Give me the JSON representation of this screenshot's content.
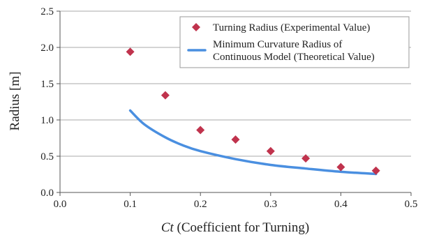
{
  "chart_data": {
    "type": "scatter",
    "title": "",
    "xlabel_italic": "Ct",
    "xlabel_rest": " (Coefficient for Turning)",
    "ylabel": "Radius [m]",
    "xlim": [
      0,
      0.5
    ],
    "ylim": [
      0,
      2.5
    ],
    "x_ticks": [
      0.0,
      0.1,
      0.2,
      0.3,
      0.4,
      0.5
    ],
    "x_tick_labels": [
      "0.0",
      "0.1",
      "0.2",
      "0.3",
      "0.4",
      "0.5"
    ],
    "y_ticks": [
      0.0,
      0.5,
      1.0,
      1.5,
      2.0,
      2.5
    ],
    "y_tick_labels": [
      "0.0",
      "0.5",
      "1.0",
      "1.5",
      "2.0",
      "2.5"
    ],
    "grid": "horizontal",
    "legend_position": "top-right",
    "series": [
      {
        "name": "Turning Radius (Experimental Value)",
        "kind": "scatter",
        "marker": "diamond",
        "color": "#c0334d",
        "x": [
          0.1,
          0.15,
          0.2,
          0.25,
          0.3,
          0.35,
          0.4,
          0.45
        ],
        "y": [
          1.94,
          1.34,
          0.86,
          0.73,
          0.57,
          0.47,
          0.35,
          0.3
        ]
      },
      {
        "name_lines": [
          "Minimum Curvature Radius of",
          "Continuous Model (Theoretical Value)"
        ],
        "kind": "line",
        "color": "#4a8fe0",
        "x": [
          0.1,
          0.12,
          0.15,
          0.175,
          0.2,
          0.25,
          0.3,
          0.35,
          0.4,
          0.45
        ],
        "y": [
          1.13,
          0.94,
          0.76,
          0.65,
          0.57,
          0.46,
          0.38,
          0.33,
          0.285,
          0.255
        ]
      }
    ]
  }
}
